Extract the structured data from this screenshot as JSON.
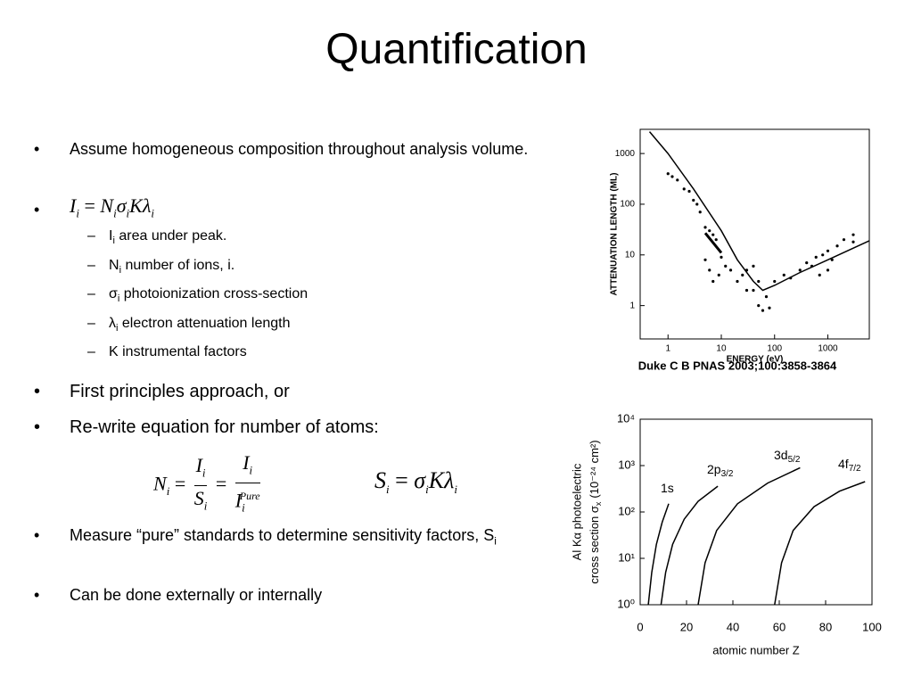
{
  "title": "Quantification",
  "bullet1": "Assume homogeneous composition throughout analysis volume.",
  "equation1": [
    {
      "s": "I",
      "sub": "i"
    },
    {
      "s": "="
    },
    {
      "s": "N",
      "sub": "i"
    },
    {
      "s": "σ",
      "sub": "i"
    },
    {
      "s": "K"
    },
    {
      "s": "λ",
      "sub": "i"
    }
  ],
  "definitions": [
    {
      "s": "I",
      "sub": "i",
      "text": "area under peak."
    },
    {
      "s": "N",
      "sub": "i",
      "text": "number of ions, i."
    },
    {
      "s": "σ",
      "sub": "i",
      "text": "photoionization cross-section"
    },
    {
      "s": "λ",
      "sub": "i",
      "text": "electron attenuation length"
    },
    {
      "s": "K",
      "text": "instrumental factors"
    }
  ],
  "bullet3": "First principles approach, or",
  "bullet4": "Re-write equation for number of atoms:",
  "equation2": {
    "lhs": {
      "s": "N",
      "sub": "i"
    },
    "eq": "=",
    "frac1": {
      "num": {
        "s": "I",
        "sub": "i"
      },
      "den": {
        "s": "S",
        "sub": "i"
      }
    },
    "frac2": {
      "num": {
        "s": "I",
        "sub": "i"
      },
      "den": {
        "s": "I",
        "sub": "i",
        "sup": "Pure"
      }
    }
  },
  "equation3": [
    {
      "s": "S",
      "sub": "i"
    },
    {
      "s": "="
    },
    {
      "s": "σ",
      "sub": "i"
    },
    {
      "s": "K"
    },
    {
      "s": "λ",
      "sub": "i"
    }
  ],
  "bullet5": {
    "text": "Measure “pure” standards to determine sensitivity factors, S",
    "sub": "i"
  },
  "bullet6": "Can be done externally or internally",
  "chart_data": [
    {
      "type": "scatter",
      "xlabel": "ENERGY (eV)",
      "ylabel": "ATTENUATION LENGTH (ML)",
      "caption": "Duke C B PNAS 2003;100:3858-3864",
      "log_x": true,
      "log_y": true,
      "xlim": [
        0.3,
        6000
      ],
      "ylim": [
        0.22,
        3000
      ],
      "xticks": [
        1,
        10,
        100,
        1000
      ],
      "yticks": [
        1,
        10,
        100,
        1000
      ],
      "series": [
        {
          "mode": "line",
          "color": "#000000",
          "x": [
            0.45,
            1,
            3,
            10,
            20,
            40,
            60,
            100,
            300,
            1000,
            6000
          ],
          "values": [
            2700,
            1000,
            200,
            30,
            8,
            3,
            2,
            2.5,
            4.5,
            8,
            19
          ]
        },
        {
          "mode": "thick-line",
          "color": "#000000",
          "x": [
            5,
            10
          ],
          "values": [
            27,
            11
          ]
        },
        {
          "mode": "markers",
          "color": "#000000",
          "x": [
            1,
            1.2,
            1.5,
            2,
            2.5,
            3,
            3.5,
            4,
            5,
            6,
            7,
            8,
            5,
            6,
            7,
            9,
            10,
            12,
            15,
            20,
            25,
            30,
            40,
            50,
            50,
            60,
            70,
            80,
            100,
            150,
            200,
            300,
            400,
            500,
            600,
            800,
            1000,
            1200,
            1500,
            2000,
            3000,
            3000,
            1000,
            700,
            40,
            30
          ],
          "values": [
            400,
            350,
            300,
            200,
            180,
            120,
            100,
            70,
            35,
            30,
            25,
            20,
            8,
            5,
            3,
            4,
            9,
            6,
            5,
            3,
            4,
            2,
            2,
            3,
            1,
            0.8,
            1.5,
            0.9,
            3,
            4,
            3.5,
            5,
            7,
            6,
            9,
            10,
            12,
            8,
            15,
            20,
            25,
            18,
            5,
            4,
            6,
            5
          ]
        }
      ]
    },
    {
      "type": "line",
      "xlabel": "atomic number Z",
      "ylabel": [
        "Al Kα photoelectric",
        "cross section σ"
      ],
      "ylabel_sub": "x",
      "ylabel_unit": "(10⁻²⁴ cm²)",
      "log_y": true,
      "xlim": [
        0,
        100
      ],
      "ylim": [
        1,
        10000
      ],
      "xticks": [
        0,
        20,
        40,
        60,
        80,
        100
      ],
      "yticks": [
        {
          "value": 1,
          "label": "10⁰"
        },
        {
          "value": 10,
          "label": "10¹"
        },
        {
          "value": 100,
          "label": "10²"
        },
        {
          "value": 1000,
          "label": "10³"
        },
        {
          "value": 10000,
          "label": "10⁴"
        }
      ],
      "series": [
        {
          "color": "#000000",
          "x": [
            3.5,
            5,
            7,
            9.5,
            12.3
          ],
          "values": [
            1,
            5,
            20,
            60,
            150
          ]
        },
        {
          "color": "#000000",
          "x": [
            9,
            11,
            14,
            19,
            25,
            33.5
          ],
          "values": [
            1,
            5,
            20,
            70,
            170,
            360
          ]
        },
        {
          "color": "#000000",
          "x": [
            25,
            28,
            33,
            42,
            55,
            69
          ],
          "values": [
            1,
            8,
            40,
            150,
            420,
            900
          ]
        },
        {
          "color": "#000000",
          "x": [
            58,
            61,
            66,
            75,
            86,
            97
          ],
          "values": [
            1,
            8,
            40,
            130,
            280,
            450
          ]
        }
      ],
      "annotations": [
        {
          "text": "1s"
        },
        {
          "text": "2p",
          "sub": "3/2"
        },
        {
          "text": "3d",
          "sub": "5/2"
        },
        {
          "text": "4f",
          "sub": "7/2"
        }
      ]
    }
  ]
}
